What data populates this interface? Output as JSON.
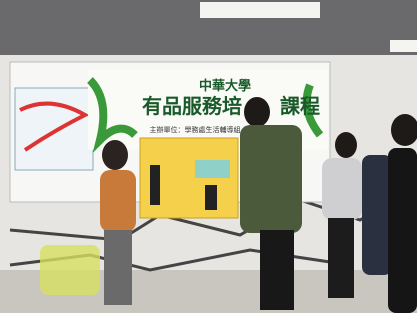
{
  "banner": {
    "school": "中華大學",
    "title_left": "有品服務培",
    "title_right": "課程",
    "organizer": "主辦單位：學務處生活輔導組"
  }
}
